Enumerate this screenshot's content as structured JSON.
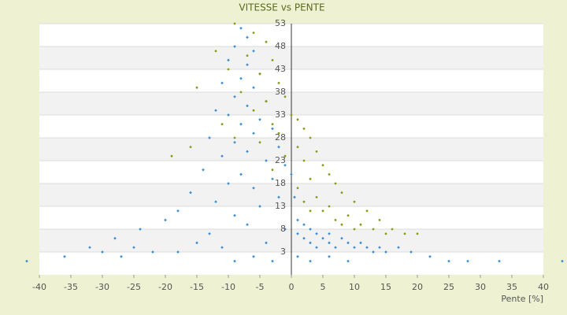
{
  "chart_data": {
    "type": "scatter",
    "title": "VITESSE vs PENTE",
    "x_label": "Pente [%]",
    "xlim": [
      -40,
      40
    ],
    "xticks": [
      -40,
      -35,
      -30,
      -25,
      -20,
      -15,
      -10,
      -5,
      0,
      5,
      10,
      15,
      20,
      25,
      30,
      35,
      40
    ],
    "ylim": [
      -2,
      53
    ],
    "yticks": [
      3,
      8,
      13,
      18,
      23,
      28,
      33,
      38,
      43,
      48,
      53
    ],
    "grid": true,
    "series": [
      {
        "color": "#3d8fd6",
        "x": [
          -8,
          -7,
          -9,
          -6,
          -10,
          -7,
          -5,
          -8,
          -11,
          -6,
          -9,
          -4,
          -7,
          -12,
          -10,
          -5,
          -8,
          -3,
          -6,
          -13,
          -9,
          -2,
          -7,
          -11,
          -4,
          -1,
          -14,
          -8,
          -3,
          -10,
          -6,
          -16,
          -2,
          -12,
          -5,
          -18,
          -9,
          -20,
          -7,
          -24,
          -13,
          -28,
          -15,
          -32,
          -22,
          -36,
          -27,
          -18,
          -11,
          -42,
          -30,
          -25,
          -4,
          -1,
          0,
          0.5,
          1,
          1,
          2,
          2,
          3,
          3,
          4,
          4,
          5,
          6,
          6,
          7,
          8,
          9,
          10,
          11,
          12,
          13,
          14,
          15,
          17,
          19,
          22,
          25,
          28,
          33,
          43,
          1,
          3,
          6,
          9,
          -3,
          -6,
          -9
        ],
        "y": [
          52,
          50,
          48,
          47,
          45,
          44,
          42,
          41,
          40,
          39,
          37,
          36,
          35,
          34,
          33,
          32,
          31,
          30,
          29,
          28,
          27,
          26,
          25,
          24,
          23,
          22,
          21,
          20,
          19,
          18,
          17,
          16,
          15,
          14,
          13,
          12,
          11,
          10,
          9,
          8,
          7,
          6,
          5,
          4,
          3,
          2,
          2,
          3,
          4,
          1,
          3,
          4,
          5,
          8,
          20,
          15,
          10,
          7,
          9,
          6,
          8,
          5,
          7,
          4,
          6,
          5,
          7,
          4,
          6,
          5,
          4,
          5,
          4,
          3,
          4,
          3,
          4,
          3,
          2,
          1,
          1,
          1,
          1,
          2,
          1,
          2,
          1,
          1,
          2,
          1
        ]
      },
      {
        "color": "#8a9a1a",
        "x": [
          -9,
          -6,
          -4,
          -12,
          -7,
          -3,
          -10,
          -5,
          -2,
          -15,
          -8,
          -1,
          -4,
          -6,
          0,
          1,
          -3,
          2,
          -2,
          3,
          -5,
          1,
          4,
          -19,
          -1,
          2,
          5,
          -3,
          6,
          3,
          7,
          1,
          8,
          4,
          10,
          6,
          12,
          5,
          9,
          14,
          7,
          11,
          16,
          13,
          18,
          20,
          15,
          10,
          8,
          3,
          2,
          -9,
          -11,
          -16
        ],
        "y": [
          53,
          51,
          49,
          47,
          46,
          45,
          43,
          42,
          40,
          39,
          38,
          37,
          36,
          34,
          33,
          32,
          31,
          30,
          29,
          28,
          27,
          26,
          25,
          24,
          24,
          23,
          22,
          21,
          20,
          19,
          18,
          17,
          16,
          15,
          14,
          13,
          12,
          12,
          11,
          10,
          10,
          9,
          8,
          8,
          7,
          7,
          7,
          8,
          9,
          12,
          14,
          28,
          31,
          26
        ]
      }
    ]
  }
}
